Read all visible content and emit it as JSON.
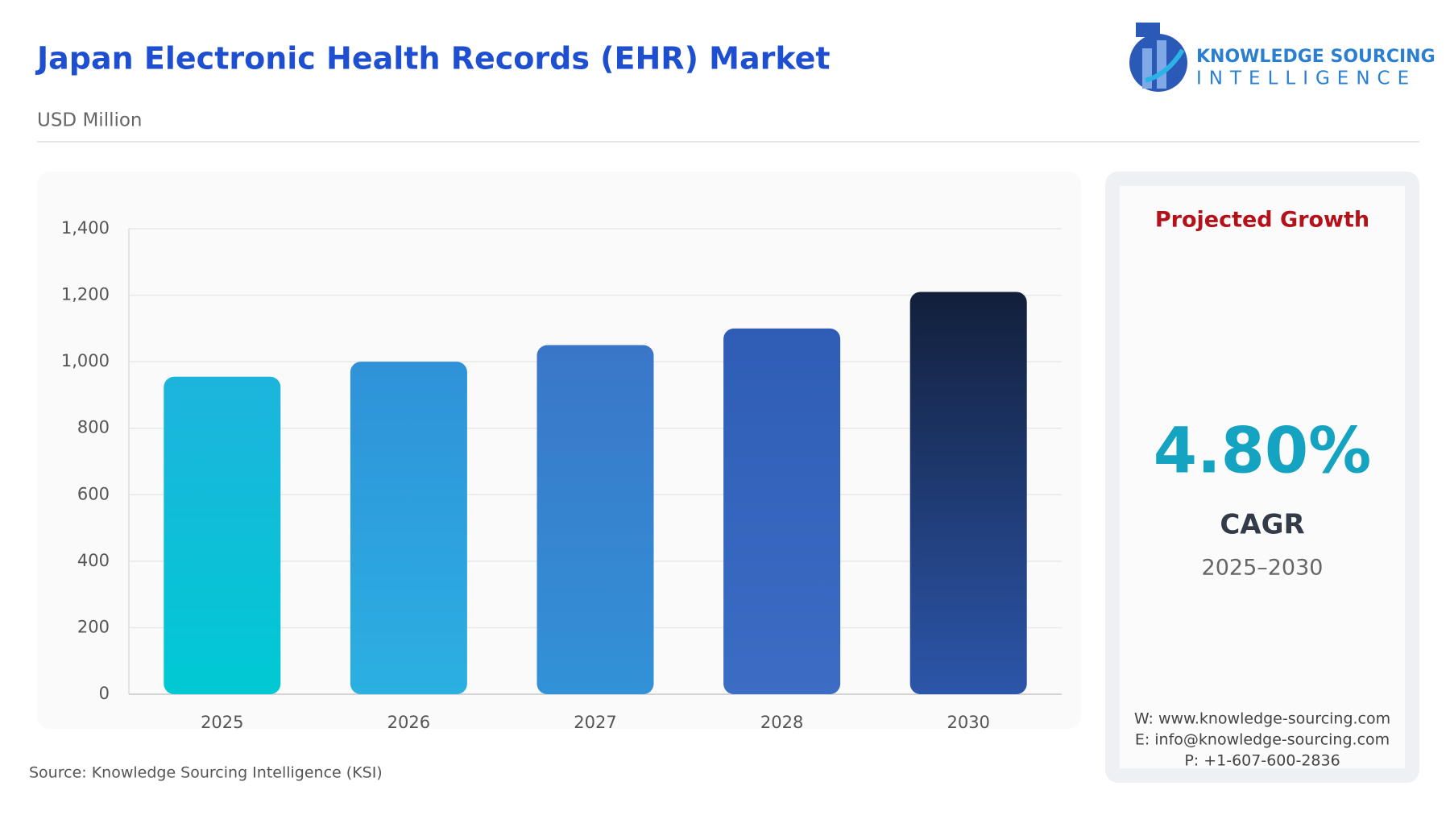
{
  "chart_data": {
    "type": "bar",
    "title": "Japan Electronic Health Records (EHR) Market",
    "subtitle": "USD Million",
    "categories": [
      "2025",
      "2026",
      "2027",
      "2028",
      "2030"
    ],
    "values": [
      955,
      1000,
      1050,
      1100,
      1210
    ],
    "colors": [
      {
        "top": "#1db4dd",
        "bottom": "#00c9d3"
      },
      {
        "top": "#2f92d8",
        "bottom": "#2bb0e2"
      },
      {
        "top": "#3a76c8",
        "bottom": "#3292d7"
      },
      {
        "top": "#2f5db6",
        "bottom": "#3b6dc5"
      },
      {
        "top": "#121f3b",
        "bottom": "#2c56aa"
      }
    ],
    "ylim": [
      0,
      1400
    ],
    "yticks": [
      0,
      200,
      400,
      600,
      800,
      {
        "value": 1000,
        "label": "1,000"
      },
      {
        "value": 1200,
        "label": "1,200"
      },
      {
        "value": 1400,
        "label": "1,400"
      }
    ],
    "grid": true
  },
  "logo": {
    "line1": "KNOWLEDGE SOURCING",
    "line2": "INTELLIGENCE"
  },
  "sidebar": {
    "heading": "Projected Growth",
    "value": "4.80%",
    "label": "CAGR",
    "period": "2025–2030",
    "contacts": [
      "W: www.knowledge-sourcing.com",
      "E: info@knowledge-sourcing.com",
      "P: +1-607-600-2836"
    ]
  },
  "source": "Source: Knowledge Sourcing Intelligence (KSI)"
}
